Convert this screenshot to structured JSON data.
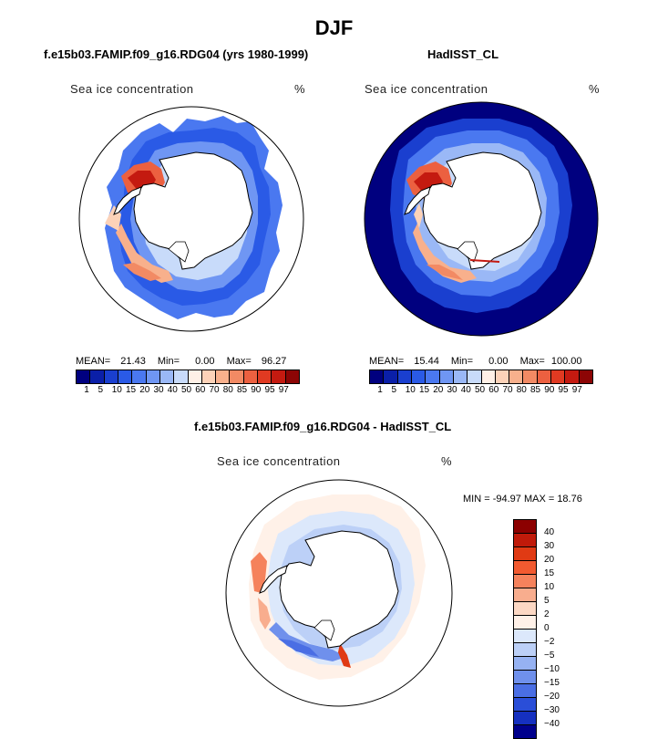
{
  "title": "DJF",
  "panel1": {
    "title": "f.e15b03.FAMIP.f09_g16.RDG04 (yrs 1980-1999)",
    "variable": "Sea ice concentration",
    "units": "%",
    "mean_label": "MEAN=",
    "mean": "21.43",
    "min_label": "Min=",
    "min": "0.00",
    "max_label": "Max=",
    "max": "96.27"
  },
  "panel2": {
    "title": "HadISST_CL",
    "variable": "Sea ice concentration",
    "units": "%",
    "mean_label": "MEAN=",
    "mean": "15.44",
    "min_label": "Min=",
    "min": "0.00",
    "max_label": "Max=",
    "max": "100.00"
  },
  "panel3": {
    "title": "f.e15b03.FAMIP.f09_g16.RDG04 - HadISST_CL",
    "variable": "Sea ice concentration",
    "units": "%",
    "minmax": "MIN = -94.97 MAX =  18.76"
  },
  "colorbar_abs": {
    "colors": [
      "#00007f",
      "#0a1fa8",
      "#1a3fcf",
      "#2a5ae6",
      "#4a78f0",
      "#6f96f3",
      "#9ab8f6",
      "#c8dbfa",
      "#fff0e6",
      "#fcd2b8",
      "#f8b08c",
      "#f28a64",
      "#ec6040",
      "#e03a22",
      "#c41a10",
      "#8c0505"
    ],
    "labels": [
      "1",
      "5",
      "10",
      "15",
      "20",
      "30",
      "40",
      "50",
      "60",
      "70",
      "80",
      "85",
      "90",
      "95",
      "97"
    ]
  },
  "colorbar_diff": {
    "colors": [
      "#8c0000",
      "#c01a0a",
      "#e03a14",
      "#f25a30",
      "#f5825c",
      "#f8ad8e",
      "#fcd8c4",
      "#fff1e8",
      "#dce8fb",
      "#bcd0f7",
      "#96b2f2",
      "#6f90ec",
      "#4a6ee4",
      "#2a4ed8",
      "#1530c0",
      "#00008c"
    ],
    "labels": [
      "40",
      "30",
      "20",
      "15",
      "10",
      "5",
      "2",
      "0",
      "−2",
      "−5",
      "−10",
      "−15",
      "−20",
      "−30",
      "−40"
    ]
  }
}
